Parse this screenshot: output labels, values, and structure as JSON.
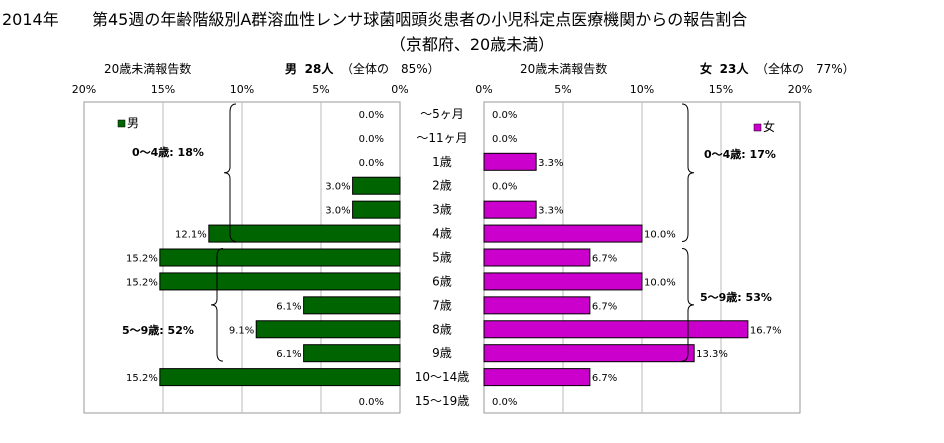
{
  "title": {
    "year": "2014年",
    "text": "第45週の年齢階級別A群溶血性レンサ球菌咽頭炎患者の小児科定点医療機関からの報告割合",
    "subtitle": "（京都府、20歳未満）"
  },
  "headers": {
    "male_axis_label": "20歳未満報告数",
    "male_summary_sex": "男",
    "male_summary_count": "28人",
    "male_summary_share": "（全体の　85%）",
    "female_axis_label": "20歳未満報告数",
    "female_summary_sex": "女",
    "female_summary_count": "23人",
    "female_summary_share": "（全体の　77%）"
  },
  "chart_data": {
    "type": "bar",
    "orientation": "horizontal",
    "layout": "population-pyramid",
    "categories": [
      "～5ヶ月",
      "～11ヶ月",
      "1歳",
      "2歳",
      "3歳",
      "4歳",
      "5歳",
      "6歳",
      "7歳",
      "8歳",
      "9歳",
      "10～14歳",
      "15～19歳"
    ],
    "series": [
      {
        "name": "男",
        "color": "#006400",
        "values": [
          0.0,
          0.0,
          0.0,
          3.0,
          3.0,
          12.1,
          15.2,
          15.2,
          6.1,
          9.1,
          6.1,
          15.2,
          0.0
        ],
        "labels": [
          "0.0%",
          "0.0%",
          "0.0%",
          "3.0%",
          "3.0%",
          "12.1%",
          "15.2%",
          "15.2%",
          "6.1%",
          "9.1%",
          "6.1%",
          "15.2%",
          "0.0%"
        ]
      },
      {
        "name": "女",
        "color": "#cc00cc",
        "values": [
          0.0,
          0.0,
          3.3,
          0.0,
          3.3,
          10.0,
          6.7,
          10.0,
          6.7,
          16.7,
          13.3,
          6.7,
          0.0
        ],
        "labels": [
          "0.0%",
          "0.0%",
          "3.3%",
          "0.0%",
          "3.3%",
          "10.0%",
          "6.7%",
          "10.0%",
          "6.7%",
          "16.7%",
          "13.3%",
          "6.7%",
          "0.0%"
        ]
      }
    ],
    "xlim": [
      0,
      20
    ],
    "male_ticks": [
      "20%",
      "15%",
      "10%",
      "5%",
      "0%"
    ],
    "female_ticks": [
      "0%",
      "5%",
      "10%",
      "15%",
      "20%"
    ],
    "annotations": {
      "male_0_4": "0～4歳: 18%",
      "male_5_9": "5～9歳: 52%",
      "female_0_4": "0～4歳: 17%",
      "female_5_9": "5～9歳: 53%"
    },
    "grid": true,
    "legend": "top-left / top-right"
  }
}
